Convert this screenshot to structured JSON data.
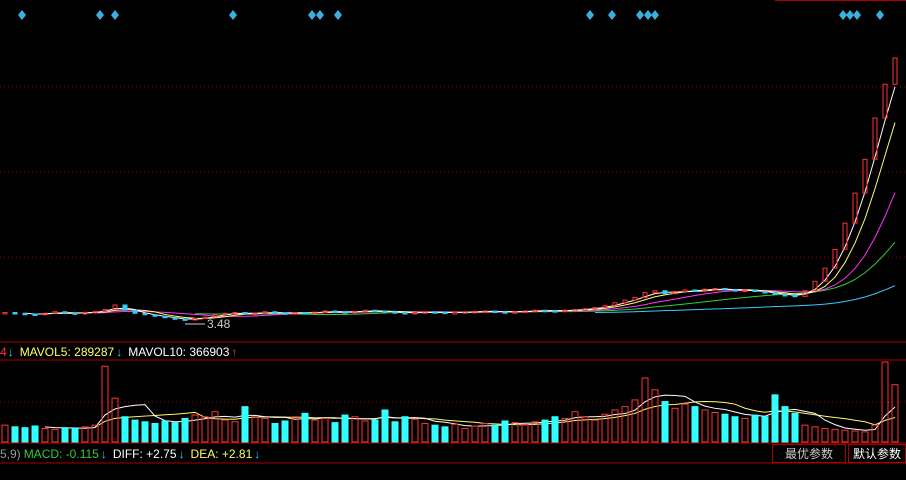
{
  "volume_legend": {
    "prefix": "4",
    "prefix_arrow": "↓",
    "mavol5": "MAVOL5: 289287",
    "mavol5_arrow": "↓",
    "mavol10": "MAVOL10: 366903",
    "mavol10_arrow": "↑"
  },
  "low_label": "3.48",
  "macd_legend": {
    "prefix": "5,9)",
    "macd": "MACD: -0.115",
    "macd_arrow": "↓",
    "diff": "DIFF: +2.75",
    "diff_arrow": "↓",
    "dea": "DEA: +2.81",
    "dea_arrow": "↓"
  },
  "buttons": [
    "最优参数",
    "默认参数"
  ],
  "price": [
    3.72,
    3.7,
    3.68,
    3.66,
    3.7,
    3.74,
    3.71,
    3.69,
    3.72,
    3.75,
    3.8,
    3.92,
    3.78,
    3.7,
    3.66,
    3.62,
    3.58,
    3.55,
    3.52,
    3.56,
    3.6,
    3.66,
    3.7,
    3.72,
    3.68,
    3.7,
    3.74,
    3.71,
    3.69,
    3.72,
    3.7,
    3.73,
    3.76,
    3.74,
    3.72,
    3.75,
    3.78,
    3.76,
    3.74,
    3.72,
    3.7,
    3.72,
    3.74,
    3.73,
    3.71,
    3.72,
    3.74,
    3.75,
    3.76,
    3.74,
    3.73,
    3.74,
    3.76,
    3.78,
    3.77,
    3.76,
    3.78,
    3.8,
    3.82,
    3.85,
    3.9,
    3.98,
    4.05,
    4.12,
    4.25,
    4.3,
    4.22,
    4.28,
    4.32,
    4.3,
    4.34,
    4.36,
    4.33,
    4.3,
    4.32,
    4.28,
    4.25,
    4.2,
    4.18,
    4.15,
    4.3,
    4.55,
    4.9,
    5.4,
    6.1,
    6.9,
    7.8,
    8.9,
    9.8,
    10.5
  ],
  "volume": [
    200000,
    180000,
    170000,
    190000,
    160000,
    150000,
    170000,
    160000,
    180000,
    200000,
    900000,
    520000,
    300000,
    260000,
    240000,
    220000,
    250000,
    230000,
    280000,
    320000,
    300000,
    360000,
    260000,
    240000,
    420000,
    300000,
    280000,
    220000,
    250000,
    300000,
    340000,
    260000,
    280000,
    230000,
    320000,
    300000,
    250000,
    260000,
    380000,
    240000,
    300000,
    270000,
    220000,
    200000,
    180000,
    210000,
    160000,
    190000,
    220000,
    200000,
    250000,
    230000,
    210000,
    240000,
    260000,
    300000,
    280000,
    360000,
    300000,
    260000,
    330000,
    380000,
    420000,
    500000,
    760000,
    620000,
    480000,
    400000,
    450000,
    420000,
    380000,
    350000,
    330000,
    300000,
    280000,
    320000,
    300000,
    560000,
    420000,
    340000,
    200000,
    180000,
    160000,
    150000,
    140000,
    130000,
    120000,
    200000,
    950000,
    680000
  ]
}
